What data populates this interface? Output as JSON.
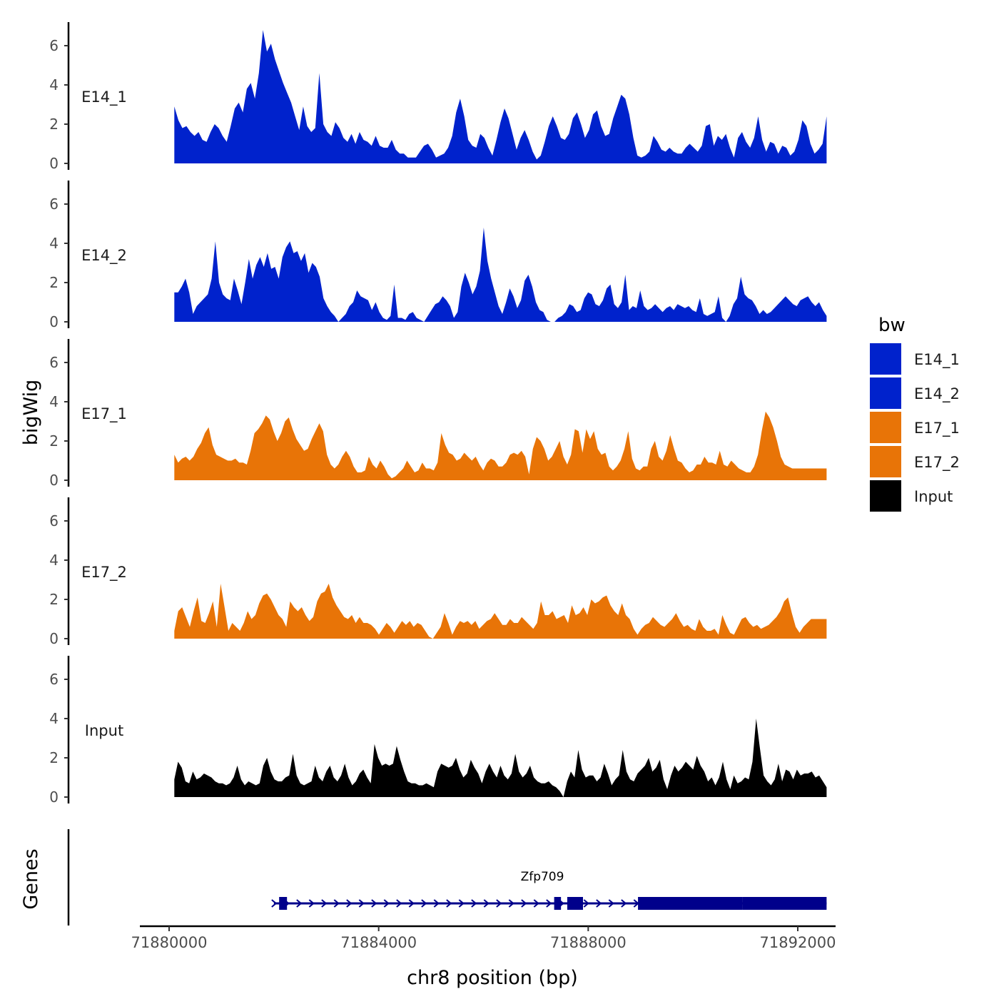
{
  "chart_data": {
    "type": "area",
    "ylabel": "bigWig",
    "xlabel": "chr8 position (bp)",
    "xlim": [
      71880000,
      71892500
    ],
    "ylim": [
      0,
      7
    ],
    "x_ticks": [
      71880000,
      71884000,
      71888000,
      71892000
    ],
    "x_tick_labels": [
      "71880000",
      "71884000",
      "71888000",
      "71892000"
    ],
    "y_ticks": [
      0,
      2,
      4,
      6
    ],
    "y_tick_labels": [
      "0",
      "2",
      "4",
      "6"
    ],
    "series": [
      {
        "name": "E14_1",
        "color": "#0022CC",
        "x_start": 71880100,
        "x_end": 71892550,
        "values": [
          2.9,
          2.2,
          1.8,
          1.9,
          1.6,
          1.4,
          1.6,
          1.2,
          1.1,
          1.6,
          2.0,
          1.8,
          1.4,
          1.1,
          1.9,
          2.8,
          3.1,
          2.6,
          3.8,
          4.1,
          3.3,
          4.6,
          6.8,
          5.7,
          6.1,
          5.3,
          4.7,
          4.1,
          3.6,
          3.1,
          2.4,
          1.7,
          2.9,
          1.9,
          1.6,
          1.8,
          4.6,
          2.0,
          1.6,
          1.4,
          2.1,
          1.8,
          1.3,
          1.1,
          1.5,
          1.0,
          1.6,
          1.2,
          1.1,
          0.9,
          1.4,
          0.9,
          0.8,
          0.8,
          1.2,
          0.7,
          0.5,
          0.5,
          0.3,
          0.3,
          0.3,
          0.6,
          0.9,
          1.0,
          0.7,
          0.3,
          0.4,
          0.5,
          0.8,
          1.4,
          2.6,
          3.3,
          2.4,
          1.2,
          0.9,
          0.8,
          1.5,
          1.3,
          0.8,
          0.4,
          1.2,
          2.1,
          2.8,
          2.3,
          1.5,
          0.7,
          1.3,
          1.7,
          1.2,
          0.6,
          0.2,
          0.4,
          1.1,
          1.9,
          2.4,
          1.9,
          1.3,
          1.2,
          1.5,
          2.3,
          2.6,
          2.0,
          1.3,
          1.7,
          2.5,
          2.7,
          1.9,
          1.4,
          1.5,
          2.3,
          2.9,
          3.5,
          3.3,
          2.5,
          1.3,
          0.4,
          0.3,
          0.4,
          0.6,
          1.4,
          1.1,
          0.7,
          0.6,
          0.8,
          0.6,
          0.5,
          0.5,
          0.8,
          1.0,
          0.8,
          0.6,
          0.9,
          1.9,
          2.0,
          0.9,
          1.4,
          1.2,
          1.5,
          0.8,
          0.3,
          1.3,
          1.6,
          1.1,
          0.8,
          1.3,
          2.4,
          1.2,
          0.6,
          1.1,
          1.0,
          0.5,
          0.9,
          0.8,
          0.4,
          0.6,
          1.2,
          2.2,
          1.9,
          1.0,
          0.5,
          0.7,
          1.0,
          2.4
        ]
      },
      {
        "name": "E14_2",
        "color": "#0022CC",
        "x_start": 71880100,
        "x_end": 71892550,
        "values": [
          1.5,
          1.5,
          1.8,
          2.2,
          1.5,
          0.4,
          0.8,
          1.0,
          1.2,
          1.4,
          2.2,
          4.1,
          2.0,
          1.4,
          1.2,
          1.1,
          2.2,
          1.6,
          0.9,
          2.0,
          3.2,
          2.2,
          2.9,
          3.3,
          2.8,
          3.5,
          2.7,
          2.8,
          2.2,
          3.3,
          3.8,
          4.1,
          3.5,
          3.6,
          3.1,
          3.5,
          2.5,
          3.0,
          2.8,
          2.3,
          1.2,
          0.8,
          0.5,
          0.3,
          0.0,
          0.2,
          0.4,
          0.8,
          1.0,
          1.6,
          1.3,
          1.2,
          1.1,
          0.6,
          1.0,
          0.5,
          0.2,
          0.1,
          0.3,
          1.9,
          0.2,
          0.2,
          0.1,
          0.4,
          0.5,
          0.2,
          0.1,
          0.0,
          0.3,
          0.6,
          0.9,
          1.0,
          1.3,
          1.1,
          0.8,
          0.2,
          0.5,
          1.8,
          2.5,
          2.0,
          1.4,
          1.8,
          2.6,
          4.8,
          3.1,
          2.2,
          1.5,
          0.8,
          0.4,
          1.0,
          1.7,
          1.3,
          0.7,
          1.1,
          2.1,
          2.4,
          1.8,
          1.0,
          0.6,
          0.5,
          0.1,
          0.0,
          0.0,
          0.2,
          0.3,
          0.5,
          0.9,
          0.8,
          0.5,
          0.6,
          1.2,
          1.5,
          1.4,
          0.9,
          0.8,
          1.1,
          1.7,
          1.9,
          0.9,
          0.7,
          1.0,
          2.4,
          0.6,
          0.8,
          0.7,
          1.6,
          0.8,
          0.6,
          0.7,
          0.9,
          0.7,
          0.5,
          0.7,
          0.8,
          0.6,
          0.9,
          0.8,
          0.7,
          0.8,
          0.6,
          0.5,
          1.2,
          0.4,
          0.3,
          0.4,
          0.5,
          1.3,
          0.2,
          0.0,
          0.3,
          0.9,
          1.2,
          2.3,
          1.4,
          1.2,
          1.1,
          0.8,
          0.4,
          0.6,
          0.4,
          0.5,
          0.7,
          0.9,
          1.1,
          1.3,
          1.1,
          0.9,
          0.8,
          1.1,
          1.2,
          1.3,
          1.0,
          0.8,
          1.0,
          0.6,
          0.3
        ]
      },
      {
        "name": "E17_1",
        "color": "#E87407",
        "x_start": 71880100,
        "x_end": 71892550,
        "values": [
          1.3,
          0.9,
          1.1,
          1.2,
          1.0,
          1.2,
          1.6,
          1.9,
          2.4,
          2.7,
          1.8,
          1.3,
          1.2,
          1.1,
          1.0,
          1.0,
          1.1,
          0.9,
          0.9,
          0.8,
          1.5,
          2.4,
          2.6,
          2.9,
          3.3,
          3.1,
          2.5,
          2.0,
          2.4,
          3.0,
          3.2,
          2.6,
          2.1,
          1.8,
          1.5,
          1.6,
          2.1,
          2.5,
          2.9,
          2.5,
          1.3,
          0.8,
          0.6,
          0.8,
          1.2,
          1.5,
          1.2,
          0.7,
          0.4,
          0.4,
          0.5,
          1.2,
          0.8,
          0.6,
          1.0,
          0.7,
          0.3,
          0.1,
          0.2,
          0.4,
          0.6,
          1.0,
          0.7,
          0.4,
          0.5,
          0.9,
          0.6,
          0.6,
          0.5,
          0.9,
          2.4,
          1.8,
          1.4,
          1.3,
          1.0,
          1.1,
          1.4,
          1.2,
          1.0,
          1.2,
          0.8,
          0.5,
          0.9,
          1.1,
          1.0,
          0.7,
          0.7,
          0.9,
          1.3,
          1.4,
          1.3,
          1.5,
          1.2,
          0.3,
          1.6,
          2.2,
          2.0,
          1.6,
          1.0,
          1.2,
          1.6,
          2.0,
          1.2,
          0.8,
          1.3,
          2.6,
          2.5,
          1.4,
          2.6,
          2.1,
          2.5,
          1.6,
          1.3,
          1.4,
          0.7,
          0.5,
          0.7,
          1.0,
          1.6,
          2.5,
          1.1,
          0.6,
          0.5,
          0.7,
          0.7,
          1.6,
          2.0,
          1.2,
          1.0,
          1.5,
          2.3,
          1.6,
          1.0,
          0.9,
          0.6,
          0.4,
          0.5,
          0.8,
          0.8,
          1.2,
          0.9,
          0.9,
          0.8,
          1.5,
          0.8,
          0.7,
          1.0,
          0.8,
          0.6,
          0.5,
          0.4,
          0.4,
          0.7,
          1.3,
          2.5,
          3.5,
          3.2,
          2.7,
          2.0,
          1.2,
          0.8,
          0.7,
          0.6,
          0.6,
          0.6,
          0.6,
          0.6,
          0.6,
          0.6,
          0.6,
          0.6,
          0.6
        ]
      },
      {
        "name": "E17_2",
        "color": "#E87407",
        "x_start": 71880100,
        "x_end": 71892550,
        "values": [
          0.4,
          1.4,
          1.6,
          1.1,
          0.6,
          1.4,
          2.1,
          0.9,
          0.8,
          1.3,
          1.9,
          0.6,
          2.8,
          1.6,
          0.4,
          0.8,
          0.6,
          0.4,
          0.8,
          1.4,
          1.0,
          1.2,
          1.8,
          2.2,
          2.3,
          2.0,
          1.6,
          1.2,
          1.0,
          0.6,
          1.9,
          1.6,
          1.4,
          1.6,
          1.2,
          0.9,
          1.1,
          1.9,
          2.3,
          2.4,
          2.8,
          2.1,
          1.7,
          1.4,
          1.1,
          1.0,
          1.2,
          0.8,
          1.1,
          0.8,
          0.8,
          0.7,
          0.5,
          0.2,
          0.5,
          0.8,
          0.6,
          0.3,
          0.6,
          0.9,
          0.7,
          0.9,
          0.6,
          0.8,
          0.7,
          0.4,
          0.1,
          0.0,
          0.3,
          0.6,
          1.3,
          0.8,
          0.2,
          0.6,
          0.9,
          0.8,
          0.9,
          0.7,
          0.9,
          0.5,
          0.7,
          0.9,
          1.0,
          1.3,
          1.0,
          0.7,
          0.7,
          1.0,
          0.8,
          0.8,
          1.1,
          0.9,
          0.7,
          0.5,
          0.8,
          1.9,
          1.2,
          1.2,
          1.4,
          1.0,
          1.1,
          1.2,
          0.8,
          1.7,
          1.2,
          1.3,
          1.6,
          1.2,
          2.0,
          1.8,
          1.9,
          2.1,
          2.2,
          1.7,
          1.4,
          1.2,
          1.8,
          1.2,
          1.0,
          0.5,
          0.2,
          0.5,
          0.7,
          0.8,
          1.1,
          0.9,
          0.7,
          0.6,
          0.8,
          1.0,
          1.3,
          0.9,
          0.6,
          0.7,
          0.5,
          0.4,
          1.0,
          0.6,
          0.4,
          0.4,
          0.5,
          0.2,
          1.2,
          0.7,
          0.3,
          0.2,
          0.6,
          1.0,
          1.1,
          0.8,
          0.6,
          0.7,
          0.5,
          0.6,
          0.7,
          0.9,
          1.1,
          1.4,
          1.9,
          2.1,
          1.3,
          0.6,
          0.3,
          0.6,
          0.8,
          1.0,
          1.0,
          1.0,
          1.0,
          1.0
        ]
      },
      {
        "name": "Input",
        "color": "#000000",
        "x_start": 71880100,
        "x_end": 71892550,
        "values": [
          0.9,
          1.8,
          1.5,
          0.8,
          0.7,
          1.3,
          0.9,
          1.0,
          1.2,
          1.1,
          1.0,
          0.8,
          0.7,
          0.7,
          0.6,
          0.7,
          1.0,
          1.6,
          0.9,
          0.6,
          0.8,
          0.7,
          0.6,
          0.7,
          1.6,
          2.0,
          1.3,
          0.9,
          0.8,
          0.8,
          1.0,
          1.1,
          2.2,
          1.1,
          0.7,
          0.6,
          0.7,
          0.8,
          1.6,
          1.0,
          0.8,
          1.3,
          1.6,
          1.0,
          0.8,
          1.1,
          1.7,
          1.0,
          0.6,
          0.8,
          1.2,
          1.4,
          1.0,
          0.7,
          2.7,
          2.0,
          1.6,
          1.7,
          1.6,
          1.7,
          2.6,
          1.9,
          1.3,
          0.8,
          0.7,
          0.7,
          0.6,
          0.6,
          0.7,
          0.6,
          0.5,
          1.3,
          1.7,
          1.6,
          1.5,
          1.6,
          2.0,
          1.4,
          1.0,
          1.2,
          1.9,
          1.5,
          1.2,
          0.7,
          1.3,
          1.7,
          1.3,
          1.0,
          1.6,
          1.1,
          0.9,
          1.2,
          2.2,
          1.3,
          1.0,
          1.2,
          1.6,
          1.0,
          0.8,
          0.7,
          0.7,
          0.8,
          0.6,
          0.5,
          0.3,
          0.0,
          0.8,
          1.3,
          1.0,
          2.4,
          1.4,
          1.0,
          1.1,
          1.1,
          0.8,
          1.0,
          1.7,
          1.2,
          0.6,
          0.9,
          1.1,
          2.4,
          1.3,
          0.9,
          0.8,
          1.2,
          1.4,
          1.6,
          2.0,
          1.3,
          1.5,
          1.9,
          0.9,
          0.4,
          1.1,
          1.6,
          1.3,
          1.5,
          1.8,
          1.6,
          1.4,
          2.1,
          1.6,
          1.3,
          0.8,
          1.0,
          0.6,
          1.0,
          1.8,
          0.9,
          0.4,
          1.1,
          0.7,
          0.8,
          1.0,
          0.9,
          1.8,
          4.0,
          2.5,
          1.1,
          0.8,
          0.6,
          0.9,
          1.7,
          0.8,
          1.4,
          1.3,
          0.9,
          1.4,
          1.1,
          1.2,
          1.2,
          1.3,
          1.0,
          1.1,
          0.8,
          0.5
        ]
      }
    ],
    "genes_panel": {
      "label": "Genes",
      "gene_name": "Zfp709",
      "strand": "+",
      "color": "#00008B",
      "line_start": 71882000,
      "line_end": 71892550,
      "exons": [
        [
          71882100,
          71882250
        ],
        [
          71887350,
          71887480
        ],
        [
          71887600,
          71887900
        ],
        [
          71888950,
          71890950
        ],
        [
          71890950,
          71892550
        ]
      ]
    },
    "legend": {
      "title": "bw",
      "position": "right",
      "items": [
        {
          "label": "E14_1",
          "color": "#0022CC"
        },
        {
          "label": "E14_2",
          "color": "#0022CC"
        },
        {
          "label": "E17_1",
          "color": "#E87407"
        },
        {
          "label": "E17_2",
          "color": "#E87407"
        },
        {
          "label": "Input",
          "color": "#000000"
        }
      ]
    }
  }
}
